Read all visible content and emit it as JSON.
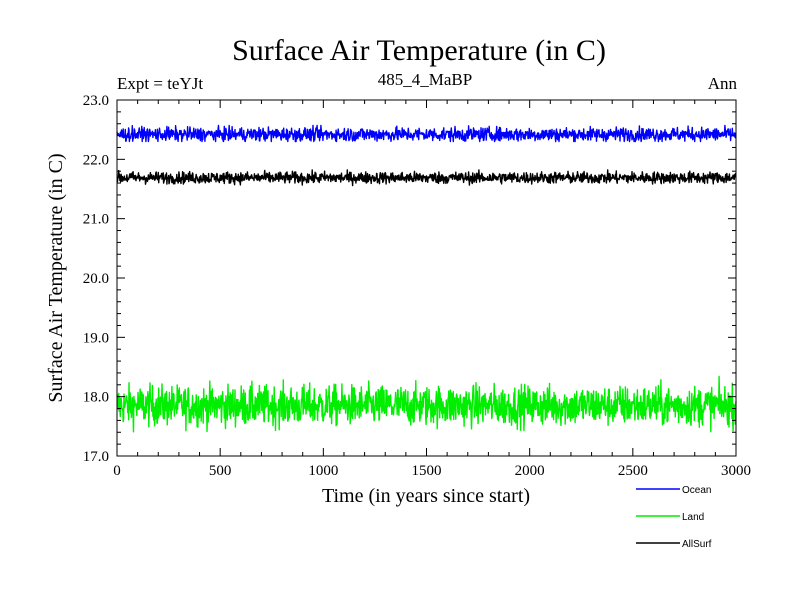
{
  "chart_data": {
    "type": "line",
    "title": "Surface Air Temperature (in C)",
    "subtitle": "485_4_MaBP",
    "experiment_label": "Expt = teYJt",
    "period_label": "Ann",
    "xlabel": "Time (in years since start)",
    "ylabel": "Surface Air Temperature (in C)",
    "xlim": [
      0,
      3000
    ],
    "ylim": [
      17.0,
      23.0
    ],
    "xticks": [
      0,
      500,
      1000,
      1500,
      2000,
      2500,
      3000
    ],
    "yticks": [
      17.0,
      18.0,
      19.0,
      20.0,
      21.0,
      22.0,
      23.0
    ],
    "ytick_labels": [
      "17.0",
      "18.0",
      "19.0",
      "20.0",
      "21.0",
      "22.0",
      "23.0"
    ],
    "grid": false,
    "legend_position": "bottom-right",
    "series": [
      {
        "name": "Ocean",
        "color": "#0000ff",
        "mean": 22.42,
        "spread": 0.06,
        "min": 22.3,
        "max": 22.57
      },
      {
        "name": "Land",
        "color": "#00ee00",
        "mean": 17.85,
        "spread": 0.17,
        "min": 17.25,
        "max": 18.42
      },
      {
        "name": "AllSurf",
        "color": "#000000",
        "mean": 21.69,
        "spread": 0.05,
        "min": 21.55,
        "max": 21.82
      }
    ]
  }
}
